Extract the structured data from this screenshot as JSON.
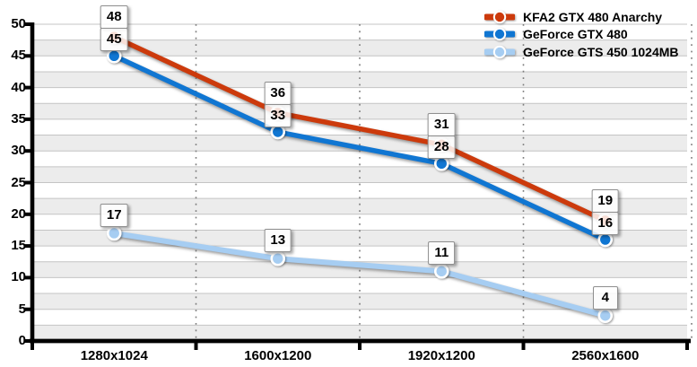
{
  "chart_data": {
    "type": "line",
    "title": "",
    "xlabel": "",
    "ylabel": "",
    "categories": [
      "1280x1024",
      "1600x1200",
      "1920x1200",
      "2560x1600"
    ],
    "series": [
      {
        "name": "KFA2 GTX 480 Anarchy",
        "color": "#cc3a0c",
        "values": [
          48,
          36,
          31,
          19
        ]
      },
      {
        "name": "GeForce GTX 480",
        "color": "#1076d2",
        "values": [
          45,
          33,
          28,
          16
        ]
      },
      {
        "name": "GeForce GTS 450 1024MB",
        "color": "#a6cdf2",
        "values": [
          17,
          13,
          11,
          4
        ]
      }
    ],
    "ylim": [
      0,
      50
    ],
    "ytick_step": 5,
    "minor_band_step": 2.5,
    "grid": true,
    "point_labels": true,
    "legend_position": "top-right",
    "style": {
      "band_gray": "#ececec",
      "band_white": "#ffffff",
      "gridline": "#c4c4c4",
      "separator_dotted": "#7d7d7d",
      "axis": "#000000",
      "point_ring": "#ffffff"
    }
  }
}
